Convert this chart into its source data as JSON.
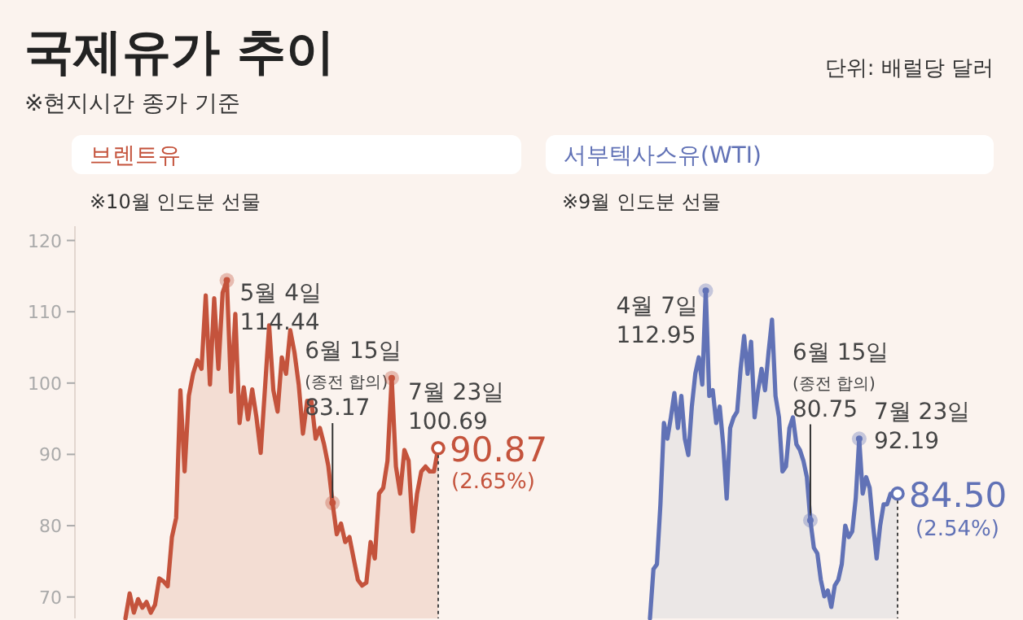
{
  "chart_data": [
    {
      "type": "area",
      "title": "국제유가 추이",
      "categories": [
        null,
        null,
        null,
        null,
        null,
        null,
        null,
        null,
        null,
        null,
        null,
        null,
        null,
        null,
        null,
        null,
        null,
        null,
        null,
        null,
        null,
        null,
        null,
        null,
        null,
        null,
        null,
        null,
        null,
        null,
        null,
        null,
        null,
        null,
        null,
        null,
        null,
        null,
        null,
        null,
        null,
        null,
        null,
        null,
        null,
        null,
        null,
        null,
        null,
        null,
        null,
        null,
        null,
        null,
        null,
        null,
        null,
        null,
        null,
        null,
        null,
        null,
        null,
        null,
        null,
        null,
        null,
        null,
        null,
        null,
        null,
        null,
        null,
        null,
        null
      ],
      "series": [
        {
          "name": "브렌트유",
          "color": "#c4533c",
          "values": [
            67.0,
            70.5,
            67.8,
            69.7,
            68.5,
            69.3,
            67.8,
            68.9,
            72.6,
            72.2,
            71.5,
            78.4,
            81.1,
            99.0,
            87.6,
            98.2,
            101.3,
            103.2,
            102.0,
            112.3,
            99.8,
            111.9,
            102.0,
            112.7,
            114.4,
            98.8,
            109.7,
            94.4,
            99.4,
            94.9,
            99.1,
            95.2,
            90.2,
            99.1,
            108.1,
            99.0,
            96.0,
            103.6,
            101.3,
            107.4,
            104.3,
            99.8,
            92.9,
            97.5,
            97.5,
            92.2,
            93.7,
            91.4,
            88.4,
            83.2,
            78.8,
            80.3,
            77.7,
            78.4,
            75.4,
            72.4,
            71.6,
            72.0,
            77.7,
            75.4,
            84.5,
            85.3,
            89.1,
            100.7,
            88.3,
            84.5,
            90.6,
            89.1,
            79.2,
            84.5,
            87.6,
            88.3,
            87.6,
            87.6,
            90.87
          ],
          "value_labels": [
            null,
            null,
            null,
            null,
            null,
            null,
            null,
            null,
            null,
            null,
            null,
            null,
            null,
            null,
            null,
            null,
            null,
            null,
            null,
            null,
            null,
            null,
            null,
            null,
            null,
            null,
            null,
            null,
            null,
            null,
            null,
            null,
            null,
            null,
            null,
            null,
            null,
            null,
            null,
            null,
            null,
            null,
            null,
            null,
            null,
            null,
            null,
            null,
            null,
            null,
            null,
            null,
            null,
            null,
            null,
            null,
            null,
            null,
            null,
            null,
            null,
            null,
            null,
            null,
            null,
            null,
            null,
            null,
            null,
            null,
            null,
            null,
            null,
            null,
            "90.87"
          ]
        }
      ],
      "ylim": [
        67,
        122
      ],
      "yticks": [
        70,
        80,
        90,
        100,
        110,
        120
      ],
      "tick_labels": "y",
      "grid": false,
      "annotations": [
        "※현지시간 종가 기준",
        "단위: 배럴당 달러",
        "※10월 인도분 선물",
        "5월 4일\n114.44",
        "6월 15일\n(종전 합의)\n83.17",
        "7월 23일\n100.69",
        "(2.65%)"
      ]
    },
    {
      "type": "area",
      "categories": [
        null,
        null,
        null,
        null,
        null,
        null,
        null,
        null,
        null,
        null,
        null,
        null,
        null,
        null,
        null,
        null,
        null,
        null,
        null,
        null,
        null,
        null,
        null,
        null,
        null,
        null,
        null,
        null,
        null,
        null,
        null,
        null,
        null,
        null,
        null,
        null,
        null,
        null,
        null,
        null,
        null,
        null,
        null,
        null,
        null,
        null,
        null,
        null,
        null,
        null,
        null,
        null,
        null,
        null,
        null,
        null,
        null,
        null,
        null,
        null,
        null,
        null,
        null,
        null,
        null,
        null,
        null,
        null,
        null,
        null,
        null,
        null
      ],
      "series": [
        {
          "name": "서부텍사스유(WTI)",
          "color": "#6172b6",
          "values": [
            67.0,
            73.9,
            74.6,
            83.0,
            94.4,
            92.2,
            95.2,
            98.6,
            93.7,
            98.2,
            92.2,
            89.9,
            96.7,
            101.3,
            103.6,
            99.8,
            112.95,
            98.2,
            99.0,
            94.4,
            96.7,
            91.4,
            83.8,
            93.7,
            95.2,
            96.0,
            102.0,
            106.6,
            101.3,
            105.8,
            95.2,
            99.0,
            102.0,
            99.0,
            104.3,
            108.9,
            98.2,
            95.2,
            87.6,
            88.3,
            93.7,
            95.2,
            91.4,
            90.6,
            89.1,
            86.8,
            80.75,
            76.9,
            76.1,
            72.4,
            70.1,
            70.9,
            68.6,
            71.6,
            72.4,
            74.6,
            80.0,
            78.4,
            79.2,
            83.8,
            92.19,
            84.5,
            86.8,
            85.3,
            80.0,
            75.4,
            80.0,
            83.0,
            83.0,
            84.5,
            84.5,
            84.5
          ],
          "value_labels": [
            null,
            null,
            null,
            null,
            null,
            null,
            null,
            null,
            null,
            null,
            null,
            null,
            null,
            null,
            null,
            null,
            "112.95",
            null,
            null,
            null,
            null,
            null,
            null,
            null,
            null,
            null,
            null,
            null,
            null,
            null,
            null,
            null,
            null,
            null,
            null,
            null,
            null,
            null,
            null,
            null,
            null,
            null,
            null,
            null,
            null,
            null,
            "80.75",
            null,
            null,
            null,
            null,
            null,
            null,
            null,
            null,
            null,
            null,
            null,
            null,
            null,
            "92.19",
            null,
            null,
            null,
            null,
            null,
            null,
            null,
            null,
            null,
            null,
            "84.50"
          ]
        }
      ],
      "tick_labels": false,
      "grid": false,
      "annotations": [
        "※9월 인도분 선물",
        "4월 7일",
        "6월 15일\n(종전 합의)",
        "7월 23일",
        "(2.54%)"
      ]
    }
  ]
}
